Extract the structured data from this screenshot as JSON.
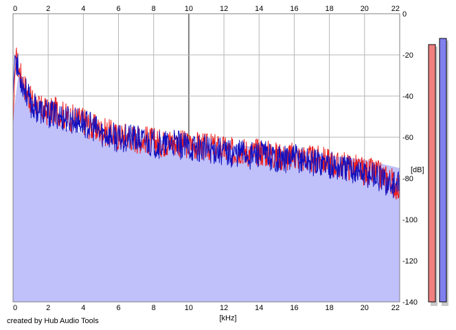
{
  "chart_data": {
    "type": "area",
    "title": "",
    "xlabel": "[kHz]",
    "ylabel": "[dB]",
    "xlim": [
      0,
      22
    ],
    "ylim": [
      -140,
      0
    ],
    "x_ticks": [
      0,
      2,
      4,
      6,
      8,
      10,
      12,
      14,
      16,
      18,
      20,
      22
    ],
    "x_tick_labels": [
      "0",
      "2",
      "4",
      "6",
      "8",
      "10",
      "12",
      "14",
      "16",
      "18",
      "20",
      "22"
    ],
    "y_ticks": [
      0,
      -20,
      -40,
      -60,
      -80,
      -100,
      -120,
      -140
    ],
    "y_tick_labels": [
      "0",
      "-20",
      "-40",
      "-60",
      "-80",
      "-100",
      "-120",
      "-140"
    ],
    "grid": true,
    "fill_floor_curve": {
      "x": [
        0,
        0.3,
        1,
        2,
        3,
        4,
        5,
        6,
        7,
        8,
        9,
        10,
        11,
        12,
        13,
        14,
        15,
        16,
        17,
        18,
        19,
        20,
        21,
        22
      ],
      "y": [
        -50,
        -30,
        -43,
        -50,
        -56,
        -58,
        -59,
        -60,
        -61,
        -61,
        -62,
        -62,
        -63,
        -64,
        -64,
        -65,
        -66,
        -67,
        -67,
        -69,
        -70,
        -71,
        -73,
        -75
      ]
    },
    "series": [
      {
        "name": "",
        "color": "#ee1c1c",
        "x": [
          0,
          0.1,
          0.2,
          0.3,
          0.5,
          0.8,
          1,
          1.5,
          2,
          2.5,
          3,
          3.5,
          4,
          4.5,
          5,
          5.5,
          6,
          6.5,
          7,
          7.5,
          8,
          8.5,
          9,
          9.5,
          10,
          10.5,
          11,
          11.5,
          12,
          12.5,
          13,
          13.5,
          14,
          14.5,
          15,
          15.5,
          16,
          16.5,
          17,
          17.5,
          18,
          18.5,
          19,
          19.5,
          20,
          20.5,
          21,
          21.5,
          22
        ],
        "y": [
          -53,
          -30,
          -22,
          -26,
          -32,
          -38,
          -42,
          -46,
          -48,
          -47,
          -50,
          -51,
          -52,
          -55,
          -57,
          -58,
          -60,
          -59,
          -61,
          -61,
          -62,
          -63,
          -62,
          -63,
          -64,
          -64,
          -65,
          -65,
          -66,
          -67,
          -66,
          -68,
          -67,
          -68,
          -69,
          -70,
          -69,
          -70,
          -71,
          -71,
          -72,
          -74,
          -74,
          -75,
          -77,
          -77,
          -79,
          -81,
          -85
        ]
      },
      {
        "name": "",
        "color": "#1010c0",
        "x": [
          0,
          0.1,
          0.2,
          0.3,
          0.5,
          0.8,
          1,
          1.5,
          2,
          2.5,
          3,
          3.5,
          4,
          4.5,
          5,
          5.5,
          6,
          6.5,
          7,
          7.5,
          8,
          8.5,
          9,
          9.5,
          10,
          10.5,
          11,
          11.5,
          12,
          12.5,
          13,
          13.5,
          14,
          14.5,
          15,
          15.5,
          16,
          16.5,
          17,
          17.5,
          18,
          18.5,
          19,
          19.5,
          20,
          20.5,
          21,
          21.5,
          22
        ],
        "y": [
          -40,
          -20,
          -23,
          -28,
          -33,
          -39,
          -44,
          -47,
          -49,
          -49,
          -51,
          -52,
          -53,
          -55,
          -58,
          -59,
          -61,
          -60,
          -61,
          -62,
          -63,
          -64,
          -63,
          -64,
          -65,
          -65,
          -66,
          -66,
          -67,
          -68,
          -67,
          -69,
          -68,
          -69,
          -70,
          -71,
          -70,
          -71,
          -72,
          -72,
          -73,
          -75,
          -75,
          -76,
          -78,
          -78,
          -81,
          -83,
          -84
        ]
      }
    ],
    "meters": [
      {
        "color": "#f08080",
        "top_db": -15
      },
      {
        "color": "#8080f0",
        "top_db": -12
      }
    ]
  },
  "footer": {
    "credit": "created by Hub Audio Tools"
  }
}
